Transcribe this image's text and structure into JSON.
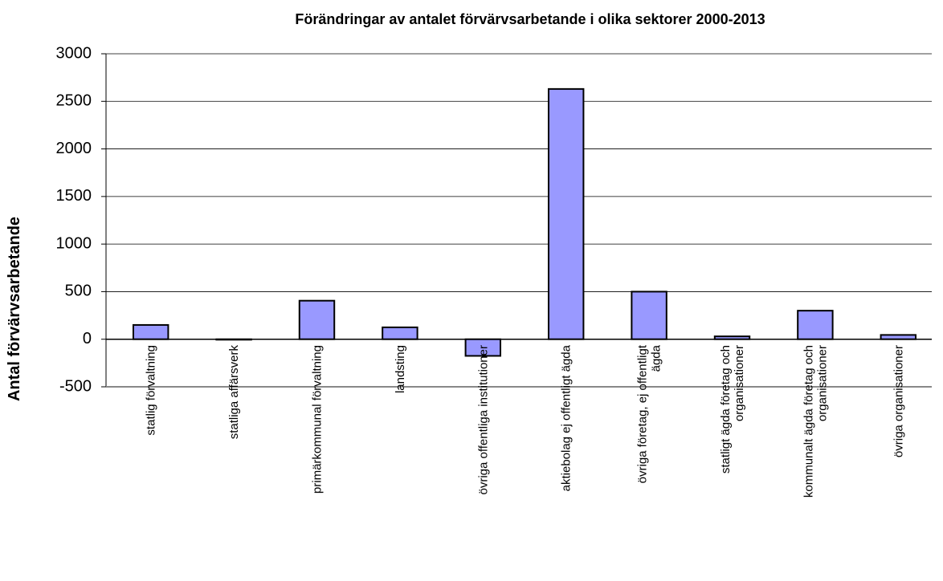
{
  "chart_data": {
    "type": "bar",
    "title": "Förändringar av antalet förvärvsarbetande i olika sektorer 2000-2013",
    "y_label": "Antal förvärvsarbetande",
    "categories": [
      "statlig förvaltning",
      "statliga affärsverk",
      "primärkommunal förvaltning",
      "landsting",
      "övriga offentliga institutioner",
      "aktiebolag ej offentligt ägda",
      "övriga företag, ej offentligt ägda",
      "statligt ägda företag och organisationer",
      "kommunalt ägda företag och organisationer",
      "övriga organisationer"
    ],
    "values": [
      150,
      -5,
      405,
      125,
      -175,
      2630,
      500,
      30,
      300,
      45
    ],
    "color": "#9999ff",
    "ylim": [
      -500,
      3000
    ],
    "yticks": [
      -500,
      0,
      500,
      1000,
      1500,
      2000,
      2500,
      3000
    ],
    "grid": true
  }
}
